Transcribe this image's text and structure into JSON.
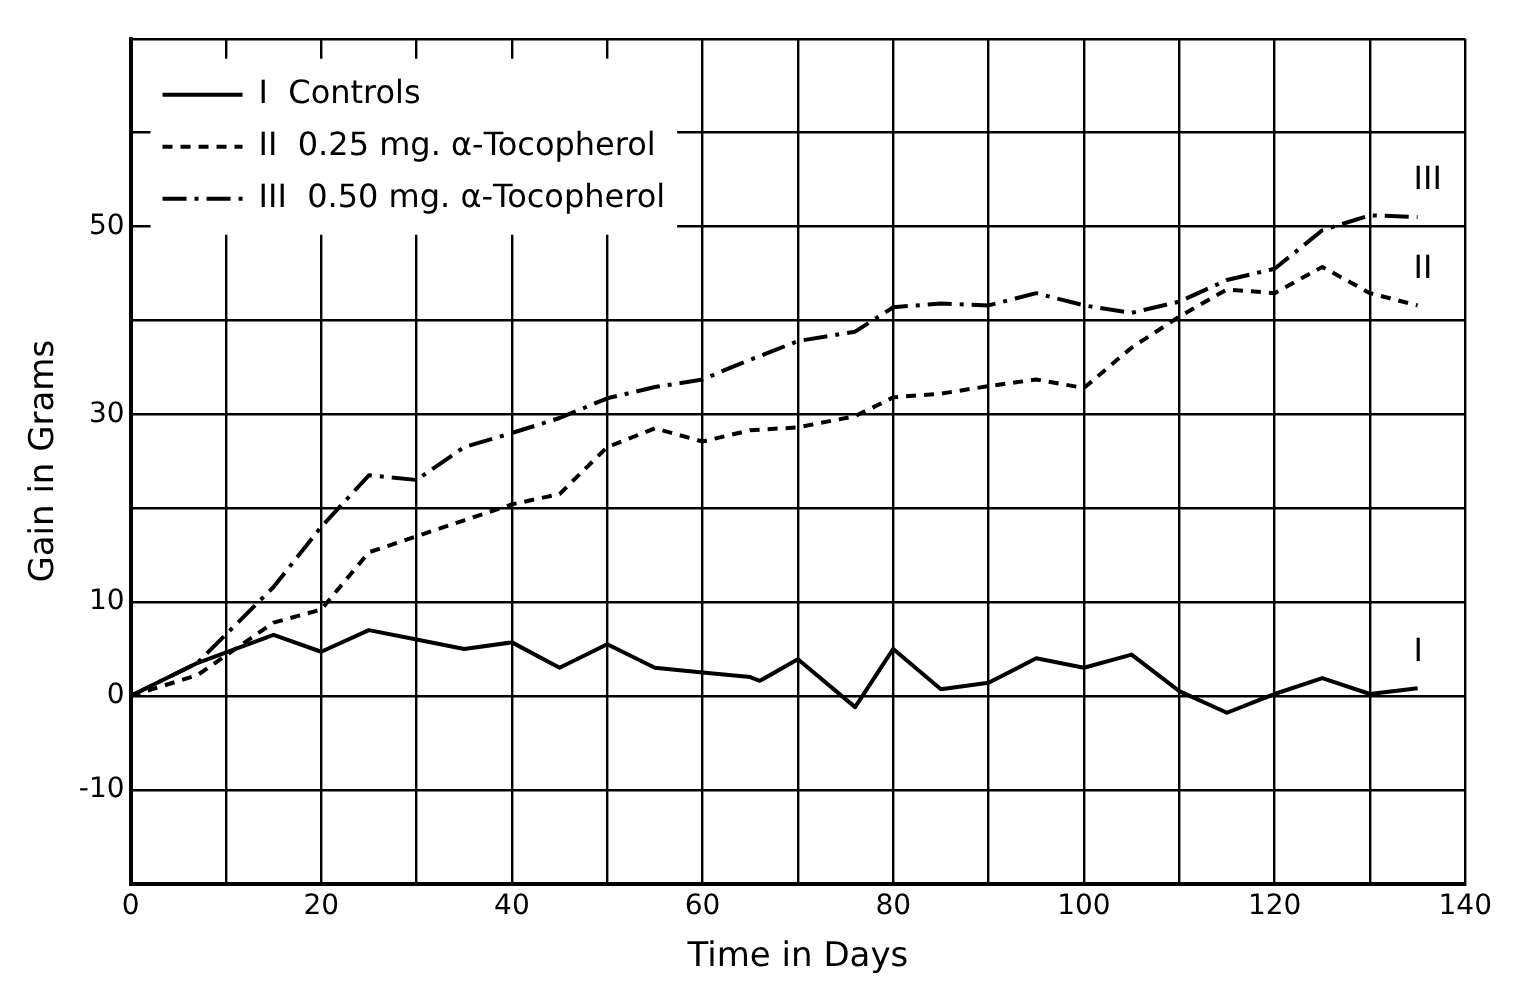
{
  "chart_data": {
    "type": "line",
    "xlabel": "Time in Days",
    "ylabel": "Gain in Grams",
    "xlim": [
      0,
      140
    ],
    "ylim": [
      -20,
      70
    ],
    "xticks": [
      0,
      {
        "value": 10,
        "label": null
      },
      20,
      {
        "value": 30,
        "label": null
      },
      40,
      {
        "value": 50,
        "label": null
      },
      60,
      {
        "value": 70,
        "label": null
      },
      80,
      {
        "value": 90,
        "label": null
      },
      100,
      {
        "value": 110,
        "label": null
      },
      120,
      {
        "value": 130,
        "label": null
      },
      140
    ],
    "yticks": [
      {
        "value": -20,
        "label": null
      },
      -10,
      0,
      10,
      {
        "value": 20,
        "label": null
      },
      30,
      {
        "value": 40,
        "label": null
      },
      50,
      {
        "value": 60,
        "label": null
      },
      {
        "value": 70,
        "label": null
      }
    ],
    "grid": true,
    "legend": "top left",
    "marker": "none",
    "series": [
      {
        "name": "I  Controls",
        "color": "#000000",
        "line_style": "solid",
        "x": [
          0,
          7,
          15,
          20,
          25,
          30,
          35,
          40,
          45,
          50,
          55,
          60,
          65,
          66,
          70,
          76,
          80,
          85,
          90,
          95,
          100,
          105,
          110,
          115,
          120,
          125,
          130,
          135
        ],
        "values": [
          0,
          3.5,
          6.5,
          4.7,
          7,
          6,
          5,
          5.7,
          3,
          5.5,
          3,
          2.5,
          2,
          1.6,
          3.9,
          -1.2,
          5,
          0.7,
          1.4,
          4,
          3,
          4.4,
          0.5,
          -1.8,
          0.2,
          1.9,
          0.2,
          0.8
        ]
      },
      {
        "name": "II  0.25 mg. α-Tocopherol",
        "color": "#000000",
        "line_style": "dotted",
        "x": [
          0,
          7,
          15,
          20,
          25,
          30,
          35,
          40,
          45,
          50,
          55,
          60,
          65,
          70,
          76,
          80,
          85,
          90,
          95,
          100,
          105,
          110,
          115,
          120,
          125,
          130,
          135
        ],
        "values": [
          0,
          2.2,
          7.8,
          9.2,
          15.3,
          17,
          18.7,
          20.4,
          21.5,
          26.5,
          28.5,
          27.1,
          28.3,
          28.6,
          29.8,
          31.8,
          32.2,
          33,
          33.7,
          32.8,
          37.1,
          40.4,
          43.3,
          42.9,
          45.7,
          42.9,
          41.6
        ]
      },
      {
        "name": "III  0.50 mg. α-Tocopherol",
        "color": "#000000",
        "line_style": "dashed",
        "x": [
          0,
          7,
          15,
          20,
          25,
          30,
          35,
          40,
          45,
          50,
          55,
          60,
          63,
          70,
          76,
          80,
          85,
          90,
          95,
          100,
          105,
          110,
          115,
          120,
          125,
          130,
          135
        ],
        "values": [
          0,
          3.5,
          11.6,
          18,
          23.5,
          23,
          26.5,
          28,
          29.6,
          31.7,
          32.9,
          33.7,
          35,
          37.8,
          38.8,
          41.4,
          41.8,
          41.6,
          42.9,
          41.6,
          40.8,
          42,
          44.3,
          45.5,
          49.6,
          51.2,
          51
        ]
      }
    ],
    "annotations": [
      "I",
      "II",
      "III"
    ]
  }
}
